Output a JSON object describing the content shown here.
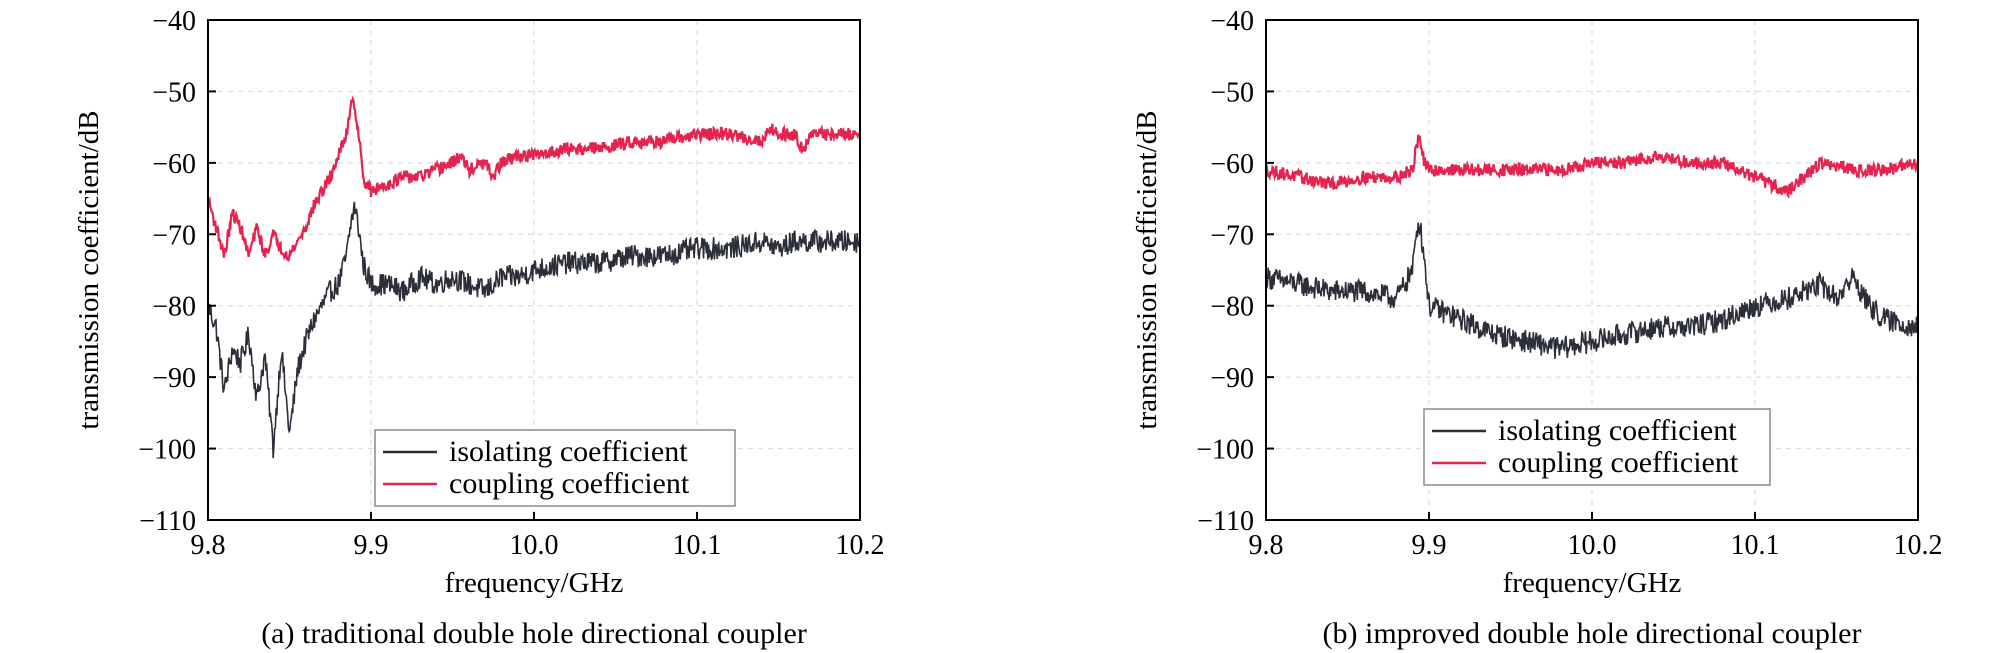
{
  "colors": {
    "isolating": "#2c2e3a",
    "coupling": "#e4234f",
    "grid": "#dcdcdc",
    "axis": "#000000"
  },
  "chart_data": [
    {
      "type": "line",
      "caption": "(a) traditional double hole directional coupler",
      "xlabel": "frequency/GHz",
      "ylabel": "transmission coefficient/dB",
      "xlim": [
        9.8,
        10.2
      ],
      "ylim": [
        -110,
        -40
      ],
      "x_ticks": [
        9.8,
        9.9,
        10.0,
        10.1,
        10.2
      ],
      "x_tick_labels": [
        "9.8",
        "9.9",
        "10.0",
        "10.1",
        "10.2"
      ],
      "y_ticks": [
        -40,
        -50,
        -60,
        -70,
        -80,
        -90,
        -100,
        -110
      ],
      "y_tick_labels": [
        "−40",
        "−50",
        "−60",
        "−70",
        "−80",
        "−90",
        "−100",
        "−110"
      ],
      "grid": true,
      "legend_position": "lower-center",
      "series": [
        {
          "name": "isolating coefficient",
          "color": "#2c2e3a",
          "x": [
            9.8,
            9.805,
            9.81,
            9.815,
            9.82,
            9.825,
            9.83,
            9.835,
            9.84,
            9.845,
            9.85,
            9.855,
            9.86,
            9.865,
            9.87,
            9.875,
            9.88,
            9.885,
            9.888,
            9.89,
            9.893,
            9.895,
            9.9,
            9.91,
            9.92,
            9.93,
            9.94,
            9.95,
            9.96,
            9.97,
            9.98,
            9.99,
            10.0,
            10.02,
            10.04,
            10.06,
            10.08,
            10.1,
            10.12,
            10.14,
            10.15,
            10.16,
            10.18,
            10.2
          ],
          "y": [
            -80,
            -83,
            -92,
            -86,
            -88,
            -84,
            -93,
            -87,
            -100,
            -86,
            -98,
            -89,
            -85,
            -82,
            -80,
            -78,
            -77,
            -73,
            -68,
            -66,
            -70,
            -74,
            -77,
            -77,
            -78,
            -76,
            -77,
            -76,
            -77,
            -78,
            -76,
            -76,
            -75,
            -74,
            -74,
            -73,
            -73,
            -72,
            -72,
            -71,
            -72,
            -71,
            -71,
            -71
          ]
        },
        {
          "name": "coupling coefficient",
          "color": "#e4234f",
          "x": [
            9.8,
            9.805,
            9.81,
            9.815,
            9.82,
            9.825,
            9.83,
            9.835,
            9.84,
            9.845,
            9.85,
            9.855,
            9.86,
            9.865,
            9.87,
            9.875,
            9.88,
            9.885,
            9.888,
            9.89,
            9.893,
            9.895,
            9.9,
            9.91,
            9.92,
            9.93,
            9.94,
            9.95,
            9.955,
            9.96,
            9.97,
            9.975,
            9.98,
            9.99,
            10.0,
            10.02,
            10.04,
            10.06,
            10.08,
            10.1,
            10.12,
            10.14,
            10.145,
            10.15,
            10.16,
            10.165,
            10.17,
            10.18,
            10.2
          ],
          "y": [
            -65,
            -69,
            -73,
            -67,
            -69,
            -73,
            -69,
            -73,
            -70,
            -72,
            -73,
            -71,
            -69,
            -66,
            -64,
            -62,
            -59,
            -56,
            -51,
            -52,
            -57,
            -62,
            -64,
            -63,
            -62,
            -62,
            -61,
            -60,
            -59,
            -61,
            -60,
            -62,
            -60,
            -59,
            -59,
            -58,
            -58,
            -57,
            -57,
            -56,
            -56,
            -57,
            -55,
            -56,
            -56,
            -58,
            -56,
            -56,
            -56
          ]
        }
      ]
    },
    {
      "type": "line",
      "caption": "(b) improved double hole directional coupler",
      "xlabel": "frequency/GHz",
      "ylabel": "transmission coefficient/dB",
      "xlim": [
        9.8,
        10.2
      ],
      "ylim": [
        -110,
        -40
      ],
      "x_ticks": [
        9.8,
        9.9,
        10.0,
        10.1,
        10.2
      ],
      "x_tick_labels": [
        "9.8",
        "9.9",
        "10.0",
        "10.1",
        "10.2"
      ],
      "y_ticks": [
        -40,
        -50,
        -60,
        -70,
        -80,
        -90,
        -100,
        -110
      ],
      "y_tick_labels": [
        "−40",
        "−50",
        "−60",
        "−70",
        "−80",
        "−90",
        "−100",
        "−110"
      ],
      "grid": true,
      "legend_position": "lower-center",
      "series": [
        {
          "name": "isolating coefficient",
          "color": "#2c2e3a",
          "x": [
            9.8,
            9.82,
            9.84,
            9.86,
            9.88,
            9.89,
            9.892,
            9.894,
            9.897,
            9.9,
            9.92,
            9.94,
            9.96,
            9.98,
            10.0,
            10.02,
            10.04,
            10.06,
            10.08,
            10.1,
            10.12,
            10.14,
            10.15,
            10.16,
            10.17,
            10.18,
            10.2
          ],
          "y": [
            -76,
            -77,
            -78,
            -78,
            -79,
            -75,
            -70,
            -68,
            -73,
            -80,
            -82,
            -84,
            -85,
            -86,
            -85,
            -84,
            -83,
            -83,
            -82,
            -80,
            -79,
            -77,
            -79,
            -76,
            -80,
            -82,
            -83
          ]
        },
        {
          "name": "coupling coefficient",
          "color": "#e4234f",
          "x": [
            9.8,
            9.82,
            9.84,
            9.86,
            9.88,
            9.89,
            9.892,
            9.894,
            9.897,
            9.9,
            9.92,
            9.94,
            9.96,
            9.98,
            10.0,
            10.02,
            10.04,
            10.06,
            10.08,
            10.1,
            10.12,
            10.14,
            10.16,
            10.18,
            10.2
          ],
          "y": [
            -61,
            -62,
            -63,
            -62,
            -62,
            -61,
            -58,
            -56,
            -60,
            -61,
            -61,
            -61,
            -61,
            -61,
            -60,
            -60,
            -59,
            -60,
            -60,
            -62,
            -64,
            -60,
            -61,
            -61,
            -60
          ]
        }
      ]
    }
  ]
}
